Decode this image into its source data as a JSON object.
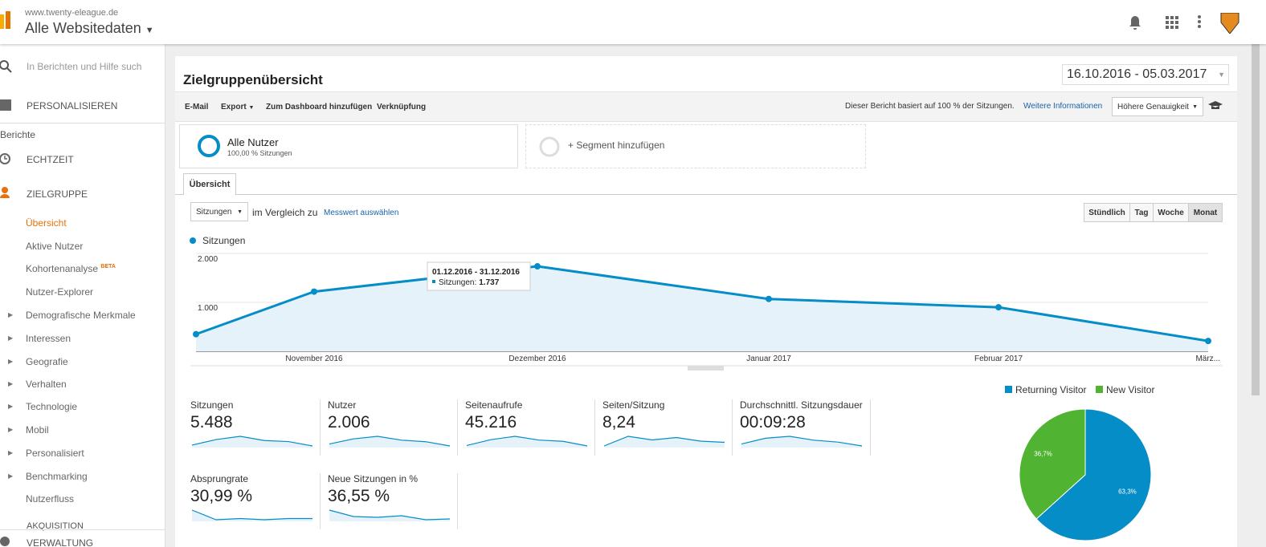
{
  "header": {
    "site": "www.twenty-eleague.de",
    "property": "Alle Websitedaten"
  },
  "sidebar": {
    "search": "In Berichten und Hilfe such",
    "personalize": "PERSONALISIEREN",
    "reports": "Berichte",
    "realtime": "ECHTZEIT",
    "audience": "ZIELGRUPPE",
    "audience_items": [
      "Übersicht",
      "Aktive Nutzer",
      "Kohortenanalyse",
      "Nutzer-Explorer",
      "Demografische Merkmale",
      "Interessen",
      "Geografie",
      "Verhalten",
      "Technologie",
      "Mobil",
      "Personalisiert",
      "Benchmarking",
      "Nutzerfluss"
    ],
    "beta": "BETA",
    "acquisition": "AKQUISITION",
    "admin": "VERWALTUNG"
  },
  "report": {
    "title": "Zielgruppenübersicht",
    "date_range": "16.10.2016 - 05.03.2017",
    "toolbar": [
      "E-Mail",
      "Export",
      "Zum Dashboard hinzufügen",
      "Verknüpfung"
    ],
    "sampling_note": "Dieser Bericht basiert auf 100 % der Sitzungen.",
    "more_info": "Weitere Informationen",
    "precision": "Höhere Genauigkeit",
    "segment": {
      "name": "Alle Nutzer",
      "share": "100,00 % Sitzungen",
      "add": "+ Segment hinzufügen"
    },
    "tab": "Übersicht",
    "metric_select": "Sitzungen",
    "compare": "im Vergleich zu",
    "select_metric": "Messwert auswählen",
    "granularity": [
      "Stündlich",
      "Tag",
      "Woche",
      "Monat"
    ],
    "tooltip": {
      "title": "01.12.2016 - 31.12.2016",
      "text": "Sitzungen:",
      "value_label": "1.737"
    },
    "metrics": [
      {
        "name": "Sitzungen",
        "value": "5.488",
        "trend": [
          350,
          1220,
          1737,
          1070,
          900,
          211
        ]
      },
      {
        "name": "Nutzer",
        "value": "2.006",
        "trend": [
          300,
          700,
          900,
          600,
          480,
          150
        ]
      },
      {
        "name": "Seitenaufrufe",
        "value": "45.216",
        "trend": [
          2000,
          9000,
          13000,
          8500,
          7000,
          1500
        ]
      },
      {
        "name": "Seiten/Sitzung",
        "value": "8,24",
        "trend": [
          7.5,
          8.3,
          8.0,
          8.2,
          7.9,
          7.8
        ]
      },
      {
        "name": "Durchschnittl. Sitzungsdauer",
        "value": "00:09:28",
        "trend": [
          520,
          580,
          600,
          560,
          540,
          500
        ]
      },
      {
        "name": "Absprungrate",
        "value": "30,99 %",
        "trend": [
          38,
          30,
          31,
          30,
          31,
          31
        ]
      },
      {
        "name": "Neue Sitzungen in %",
        "value": "36,55 %",
        "trend": [
          45,
          37,
          36,
          38,
          33,
          34
        ]
      }
    ]
  },
  "chart_data": [
    {
      "type": "line",
      "categories": [
        null,
        "November 2016",
        "Dezember 2016",
        "Januar 2017",
        "Februar 2017",
        "März..."
      ],
      "series": [
        {
          "name": "Sitzungen",
          "color": "#058dc7",
          "values": [
            350,
            1220,
            1737,
            1070,
            900,
            211
          ]
        }
      ],
      "ylim": [
        0,
        2000
      ],
      "yticks": [
        {
          "value": 1000,
          "label": "1.000"
        },
        {
          "value": 2000,
          "label": "2.000"
        }
      ],
      "grid": true
    },
    {
      "type": "pie",
      "categories": [
        "Returning Visitor",
        "New Visitor"
      ],
      "values": [
        63.3,
        36.7
      ],
      "value_labels": [
        "63,3%",
        "36,7%"
      ],
      "colors": [
        "#058dc7",
        "#50b432"
      ]
    }
  ]
}
